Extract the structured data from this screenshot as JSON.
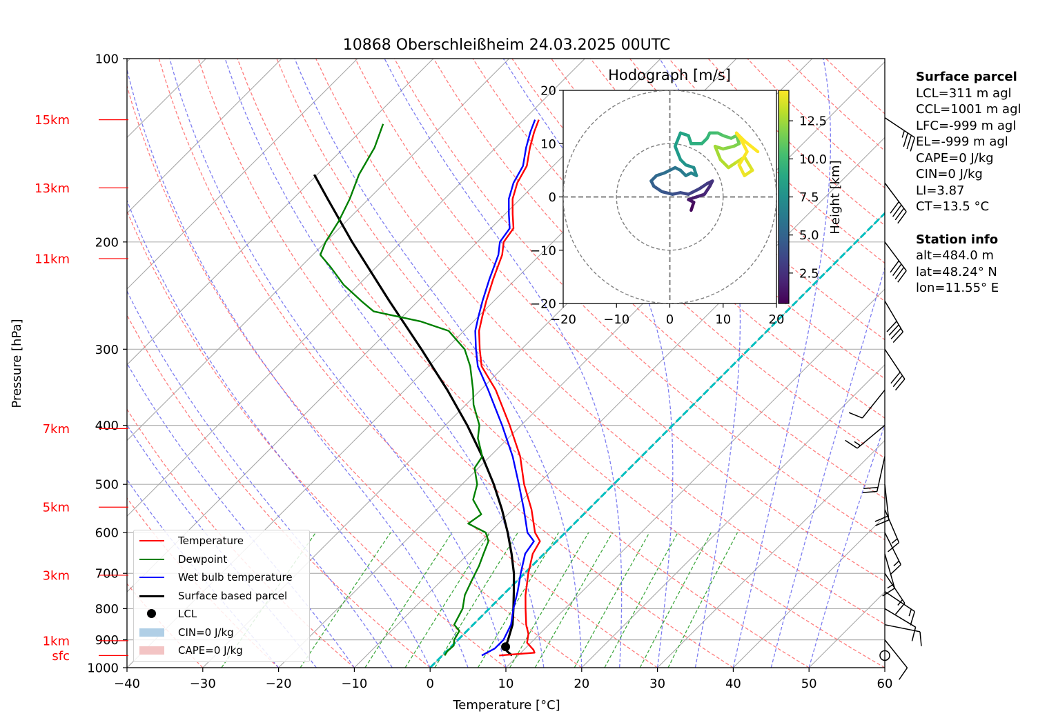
{
  "chart_data": {
    "type": "skew-t log-p sounding",
    "title": "10868 Oberschleißheim 24.03.2025 00UTC",
    "xlabel": "Temperature [°C]",
    "ylabel": "Pressure [hPa]",
    "xlim": [
      -40,
      60
    ],
    "ylim_hpa": [
      1000,
      100
    ],
    "y_scale": "log",
    "grid": true,
    "x_ticks": [
      -40,
      -30,
      -20,
      -10,
      0,
      10,
      20,
      30,
      40,
      50,
      60
    ],
    "y_ticks": [
      100,
      200,
      300,
      400,
      500,
      600,
      700,
      800,
      900,
      1000
    ],
    "height_labels": [
      {
        "label": "15km",
        "p": 126
      },
      {
        "label": "13km",
        "p": 163
      },
      {
        "label": "11km",
        "p": 213
      },
      {
        "label": "7km",
        "p": 405
      },
      {
        "label": "5km",
        "p": 545
      },
      {
        "label": "3km",
        "p": 705
      },
      {
        "label": "1km",
        "p": 903
      },
      {
        "label": "sfc",
        "p": 955
      }
    ],
    "temperature": [
      [
        955,
        7.5
      ],
      [
        945,
        11.8
      ],
      [
        935,
        11.3
      ],
      [
        910,
        9.5
      ],
      [
        880,
        8.5
      ],
      [
        850,
        7.0
      ],
      [
        800,
        4.8
      ],
      [
        760,
        3.0
      ],
      [
        700,
        0.5
      ],
      [
        650,
        -1.5
      ],
      [
        620,
        -2.2
      ],
      [
        600,
        -4.0
      ],
      [
        550,
        -7.5
      ],
      [
        500,
        -11.8
      ],
      [
        450,
        -16.0
      ],
      [
        400,
        -21.5
      ],
      [
        350,
        -28.0
      ],
      [
        320,
        -33.0
      ],
      [
        300,
        -35.5
      ],
      [
        280,
        -38.0
      ],
      [
        265,
        -39.5
      ],
      [
        250,
        -41.0
      ],
      [
        230,
        -43.0
      ],
      [
        210,
        -45.0
      ],
      [
        200,
        -46.5
      ],
      [
        190,
        -47.0
      ],
      [
        180,
        -49.0
      ],
      [
        170,
        -51.0
      ],
      [
        160,
        -52.5
      ],
      [
        150,
        -53.5
      ],
      [
        140,
        -55.5
      ],
      [
        132,
        -57.0
      ],
      [
        126,
        -58.0
      ]
    ],
    "dewpoint": [
      [
        955,
        0.3
      ],
      [
        940,
        0.1
      ],
      [
        920,
        0.2
      ],
      [
        900,
        -0.5
      ],
      [
        870,
        -1.0
      ],
      [
        850,
        -2.5
      ],
      [
        800,
        -3.5
      ],
      [
        760,
        -5.0
      ],
      [
        720,
        -6.0
      ],
      [
        680,
        -7.0
      ],
      [
        650,
        -8.0
      ],
      [
        620,
        -9.0
      ],
      [
        600,
        -10.5
      ],
      [
        580,
        -14.0
      ],
      [
        560,
        -13.5
      ],
      [
        530,
        -16.5
      ],
      [
        500,
        -18.0
      ],
      [
        470,
        -20.5
      ],
      [
        450,
        -21.0
      ],
      [
        420,
        -24.0
      ],
      [
        400,
        -25.5
      ],
      [
        370,
        -29.0
      ],
      [
        350,
        -31.0
      ],
      [
        320,
        -34.5
      ],
      [
        300,
        -37.5
      ],
      [
        280,
        -42.0
      ],
      [
        270,
        -47.0
      ],
      [
        260,
        -54.5
      ],
      [
        250,
        -57.5
      ],
      [
        235,
        -62.0
      ],
      [
        220,
        -66.0
      ],
      [
        210,
        -69.0
      ],
      [
        200,
        -70.0
      ],
      [
        185,
        -71.0
      ],
      [
        170,
        -72.5
      ],
      [
        155,
        -74.5
      ],
      [
        140,
        -76.0
      ],
      [
        128,
        -78.0
      ]
    ],
    "wetbulb": [
      [
        955,
        5.2
      ],
      [
        930,
        6.0
      ],
      [
        900,
        6.0
      ],
      [
        850,
        5.0
      ],
      [
        800,
        3.2
      ],
      [
        750,
        1.5
      ],
      [
        700,
        -0.5
      ],
      [
        650,
        -2.5
      ],
      [
        620,
        -3.0
      ],
      [
        600,
        -5.0
      ],
      [
        550,
        -8.5
      ],
      [
        500,
        -12.5
      ],
      [
        450,
        -17.0
      ],
      [
        400,
        -22.5
      ],
      [
        350,
        -29.0
      ],
      [
        320,
        -33.5
      ],
      [
        300,
        -36.0
      ],
      [
        280,
        -38.5
      ],
      [
        265,
        -40.0
      ],
      [
        250,
        -41.5
      ],
      [
        230,
        -43.5
      ],
      [
        210,
        -45.5
      ],
      [
        200,
        -47.0
      ],
      [
        190,
        -47.5
      ],
      [
        180,
        -49.5
      ],
      [
        170,
        -51.5
      ],
      [
        160,
        -53.0
      ],
      [
        150,
        -54.0
      ],
      [
        140,
        -56.0
      ],
      [
        132,
        -57.5
      ],
      [
        126,
        -58.5
      ]
    ],
    "parcel": [
      [
        955,
        9.2
      ],
      [
        940,
        8.0
      ],
      [
        924,
        7.2
      ],
      [
        900,
        6.6
      ],
      [
        850,
        5.2
      ],
      [
        800,
        3.2
      ],
      [
        750,
        1.0
      ],
      [
        700,
        -1.4
      ],
      [
        650,
        -4.3
      ],
      [
        600,
        -7.6
      ],
      [
        550,
        -11.4
      ],
      [
        500,
        -15.8
      ],
      [
        450,
        -21.0
      ],
      [
        400,
        -27.1
      ],
      [
        350,
        -34.4
      ],
      [
        300,
        -43.2
      ],
      [
        250,
        -53.8
      ],
      [
        200,
        -66.5
      ],
      [
        170,
        -75.4
      ],
      [
        155,
        -80.4
      ]
    ],
    "lcl": {
      "p": 924,
      "t": 7.2
    },
    "hodograph": {
      "title": "Hodograph [m/s]",
      "xlim": [
        -20,
        20
      ],
      "ylim": [
        -20,
        20
      ],
      "ticks": [
        -20,
        -10,
        0,
        10,
        20
      ],
      "rings": [
        10,
        20
      ],
      "colorbar_label": "Height [km]",
      "colorbar_ticks": [
        2.5,
        5.0,
        7.5,
        10.0,
        12.5
      ],
      "colorbar_range": [
        0.5,
        14.5
      ],
      "points": [
        [
          4.0,
          -2.5,
          0.5
        ],
        [
          4.5,
          -1.0,
          1.0
        ],
        [
          3.5,
          -0.5,
          1.3
        ],
        [
          5.0,
          0.0,
          1.6
        ],
        [
          6.5,
          0.5,
          1.9
        ],
        [
          7.5,
          2.0,
          2.2
        ],
        [
          8.0,
          3.0,
          2.5
        ],
        [
          7.0,
          2.5,
          2.8
        ],
        [
          5.5,
          1.5,
          3.1
        ],
        [
          3.5,
          0.5,
          3.4
        ],
        [
          2.0,
          0.8,
          3.7
        ],
        [
          0.5,
          0.5,
          4.0
        ],
        [
          -1.5,
          1.0,
          4.3
        ],
        [
          -3.0,
          2.0,
          4.6
        ],
        [
          -3.5,
          3.0,
          4.9
        ],
        [
          -2.5,
          4.0,
          5.2
        ],
        [
          -1.0,
          4.5,
          5.5
        ],
        [
          1.0,
          5.5,
          5.8
        ],
        [
          2.0,
          5.0,
          6.1
        ],
        [
          3.0,
          4.0,
          6.4
        ],
        [
          4.0,
          4.5,
          6.7
        ],
        [
          5.0,
          4.0,
          7.0
        ],
        [
          4.5,
          5.5,
          7.3
        ],
        [
          3.0,
          6.0,
          7.6
        ],
        [
          2.0,
          7.0,
          7.9
        ],
        [
          1.0,
          9.5,
          8.2
        ],
        [
          2.0,
          12.0,
          8.5
        ],
        [
          3.5,
          11.5,
          8.8
        ],
        [
          4.0,
          10.0,
          9.1
        ],
        [
          6.0,
          10.0,
          9.4
        ],
        [
          7.0,
          11.0,
          9.7
        ],
        [
          7.5,
          12.0,
          10.0
        ],
        [
          9.0,
          12.0,
          10.3
        ],
        [
          10.0,
          11.5,
          10.6
        ],
        [
          11.5,
          11.0,
          10.9
        ],
        [
          12.5,
          11.5,
          11.2
        ],
        [
          13.0,
          10.0,
          11.5
        ],
        [
          12.0,
          9.5,
          11.8
        ],
        [
          10.0,
          9.0,
          12.1
        ],
        [
          8.5,
          9.5,
          12.4
        ],
        [
          9.5,
          7.0,
          12.7
        ],
        [
          11.0,
          5.5,
          13.0
        ],
        [
          12.5,
          6.5,
          13.3
        ],
        [
          14.0,
          7.5,
          13.6
        ],
        [
          15.5,
          5.0,
          13.9
        ],
        [
          14.0,
          4.0,
          14.1
        ],
        [
          13.0,
          6.0,
          14.3
        ],
        [
          14.5,
          8.5,
          14.5
        ],
        [
          13.5,
          10.5,
          14.6
        ],
        [
          12.5,
          12.0,
          14.7
        ],
        [
          14.0,
          10.5,
          14.8
        ],
        [
          16.5,
          8.5,
          14.9
        ]
      ]
    },
    "wind_barbs": [
      {
        "p": 955,
        "calm": true
      },
      {
        "p": 900,
        "u": -4,
        "v": 5
      },
      {
        "p": 850,
        "u": -5,
        "v": 1
      },
      {
        "p": 800,
        "u": -5,
        "v": 3
      },
      {
        "p": 750,
        "u": -6,
        "v": 4
      },
      {
        "p": 700,
        "u": -4,
        "v": 6
      },
      {
        "p": 650,
        "u": -2,
        "v": 7
      },
      {
        "p": 600,
        "u": -3,
        "v": 6
      },
      {
        "p": 550,
        "u": -3,
        "v": 7
      },
      {
        "p": 500,
        "u": -1,
        "v": 9
      },
      {
        "p": 450,
        "u": 2,
        "v": 9
      },
      {
        "p": 400,
        "u": 6,
        "v": 5
      },
      {
        "p": 350,
        "u": 4,
        "v": 5
      },
      {
        "p": 300,
        "u": -8,
        "v": 12
      },
      {
        "p": 250,
        "u": -10,
        "v": 17
      },
      {
        "p": 200,
        "u": -12,
        "v": 16
      },
      {
        "p": 160,
        "u": -12,
        "v": 16
      },
      {
        "p": 125,
        "u": -15,
        "v": 10
      }
    ]
  },
  "legend": {
    "items": [
      {
        "label": "Temperature",
        "color": "#ff0000",
        "kind": "line"
      },
      {
        "label": "Dewpoint",
        "color": "#008000",
        "kind": "line"
      },
      {
        "label": "Wet bulb temperature",
        "color": "#0000ff",
        "kind": "line"
      },
      {
        "label": "Surface based parcel",
        "color": "#000000",
        "kind": "thick-line"
      },
      {
        "label": "LCL",
        "color": "#000000",
        "kind": "dot"
      },
      {
        "label": "CIN=0 J/kg",
        "color": "#b0cfe6",
        "kind": "patch"
      },
      {
        "label": "CAPE=0 J/kg",
        "color": "#f3c4c4",
        "kind": "patch"
      }
    ]
  },
  "surface_parcel": {
    "heading": "Surface parcel",
    "lines": [
      "LCL=311 m agl",
      "CCL=1001 m agl",
      "LFC=-999 m agl",
      "EL=-999 m agl",
      "CAPE=0 J/kg",
      "CIN=0 J/kg",
      "LI=3.87",
      "CT=13.5 °C"
    ]
  },
  "station_info": {
    "heading": "Station info",
    "lines": [
      "alt=484.0 m",
      "lat=48.24° N",
      "lon=11.55° E"
    ]
  },
  "colors": {
    "temperature": "#ff0000",
    "dewpoint": "#008000",
    "wetbulb": "#0000ff",
    "parcel": "#000000",
    "isotherm_zero": "#00bfbf",
    "dry_adiabat": "#ff6666",
    "moist_adiabat": "#6666ee",
    "mixing_ratio": "#2ca02c",
    "height_label": "#ff0000"
  }
}
